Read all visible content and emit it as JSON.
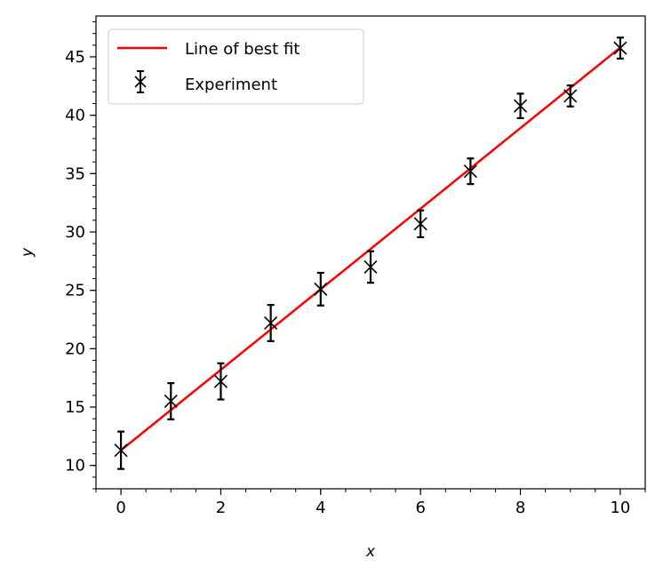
{
  "chart_data": {
    "type": "scatter",
    "title": "",
    "xlabel": "x",
    "ylabel": "y",
    "xlim": [
      -0.5,
      10.5
    ],
    "ylim": [
      8,
      48.5
    ],
    "xticks": [
      0,
      2,
      4,
      6,
      8,
      10
    ],
    "xtick_labels": [
      "0",
      "2",
      "4",
      "6",
      "8",
      "10"
    ],
    "yticks": [
      10,
      15,
      20,
      25,
      30,
      35,
      40,
      45
    ],
    "ytick_labels": [
      "10",
      "15",
      "20",
      "25",
      "30",
      "35",
      "40",
      "45"
    ],
    "x_minor_step": 0.5,
    "y_minor_step": 1,
    "grid": false,
    "legend_position": "top-left",
    "series": [
      {
        "name": "Experiment",
        "kind": "errorbar",
        "marker": "x",
        "color": "#000000",
        "x": [
          0,
          1,
          2,
          3,
          4,
          5,
          6,
          7,
          8,
          9,
          10
        ],
        "y": [
          11.3,
          15.5,
          17.2,
          22.2,
          25.1,
          27.0,
          30.7,
          35.2,
          40.8,
          41.65,
          45.75
        ],
        "yerr": [
          1.6,
          1.55,
          1.55,
          1.55,
          1.4,
          1.35,
          1.15,
          1.1,
          1.05,
          0.9,
          0.9
        ]
      },
      {
        "name": "Line of best fit",
        "kind": "line",
        "color": "#ff0000",
        "slope": 3.45,
        "intercept": 11.3
      }
    ]
  }
}
